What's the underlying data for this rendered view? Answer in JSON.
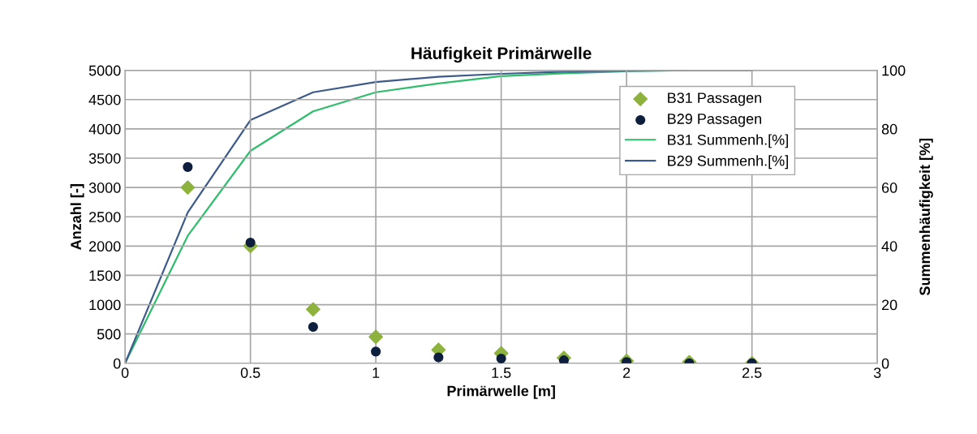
{
  "chart_data": {
    "type": "scatter",
    "title": "Häufigkeit Primärwelle",
    "xlabel": "Primärwelle [m]",
    "ylabel": "Anzahl [-]",
    "y2label": "Summenhäufigkeit [%]",
    "xlim": [
      0,
      3
    ],
    "xticks": [
      0,
      0.5,
      1,
      1.5,
      2,
      2.5,
      3
    ],
    "ylim": [
      0,
      5000
    ],
    "yticks": [
      0,
      500,
      1000,
      1500,
      2000,
      2500,
      3000,
      3500,
      4000,
      4500,
      5000
    ],
    "y2lim": [
      0,
      100
    ],
    "y2ticks": [
      0,
      20,
      40,
      60,
      80,
      100
    ],
    "grid": true,
    "legend": "top right",
    "series": [
      {
        "name": "B31 Passagen",
        "marker": "diamond",
        "color": "#8db33e",
        "x": [
          0.25,
          0.5,
          0.75,
          1,
          1.25,
          1.5,
          1.75,
          2,
          2.25,
          2.5
        ],
        "values": [
          3000,
          2000,
          920,
          450,
          230,
          170,
          90,
          40,
          20,
          0
        ]
      },
      {
        "name": "B29 Passagen",
        "marker": "circle",
        "color": "#0d1f3c",
        "x": [
          0.25,
          0.5,
          0.75,
          1,
          1.25,
          1.5,
          1.75,
          2,
          2.25,
          2.5
        ],
        "values": [
          3350,
          2060,
          620,
          200,
          100,
          80,
          50,
          20,
          0,
          0
        ]
      },
      {
        "name": "B31 Summenh.[%]",
        "type": "line",
        "axis": "y2",
        "color": "#2ebd6b",
        "x": [
          0,
          0.25,
          0.5,
          0.75,
          1,
          1.25,
          1.5,
          1.75,
          2,
          2.25,
          2.5
        ],
        "values": [
          0,
          43.5,
          72.5,
          86,
          92.5,
          95.5,
          98,
          99,
          99.7,
          100,
          100
        ]
      },
      {
        "name": "B29 Summenh.[%]",
        "type": "line",
        "axis": "y2",
        "color": "#3c5a8a",
        "x": [
          0,
          0.25,
          0.5,
          0.75,
          1,
          1.25,
          1.5,
          1.75,
          2,
          2.25,
          2.5
        ],
        "values": [
          0,
          51.5,
          83,
          92.5,
          96,
          97.8,
          98.8,
          99.5,
          99.8,
          100,
          100
        ]
      }
    ]
  }
}
